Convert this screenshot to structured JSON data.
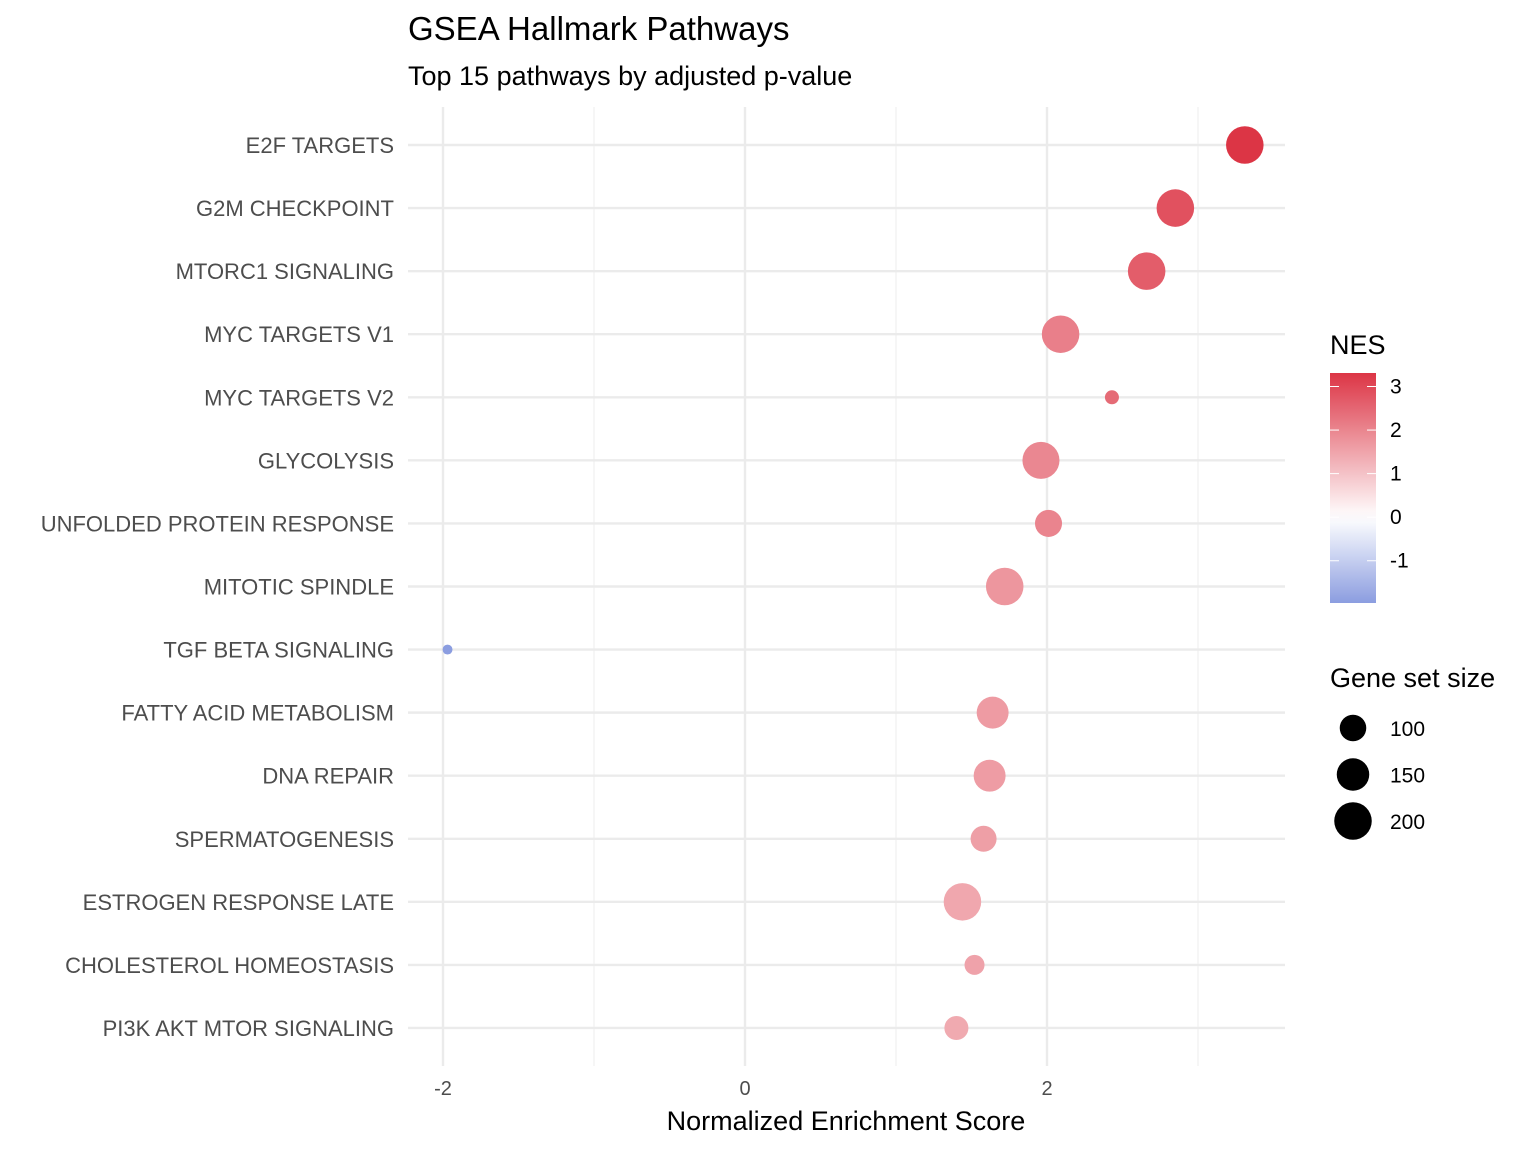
{
  "chart_data": {
    "type": "scatter",
    "title": "GSEA Hallmark Pathways",
    "subtitle": "Top 15 pathways by adjusted p-value",
    "xlabel": "Normalized Enrichment Score",
    "ylabel": "",
    "xlim": [
      -2.23,
      3.58
    ],
    "x_ticks": [
      -2,
      0,
      2
    ],
    "x_tick_labels": [
      "-2",
      "0",
      "2"
    ],
    "grid": true,
    "categories": [
      "E2F TARGETS",
      "G2M CHECKPOINT",
      "MTORC1 SIGNALING",
      "MYC TARGETS V1",
      "MYC TARGETS V2",
      "GLYCOLYSIS",
      "UNFOLDED PROTEIN RESPONSE",
      "MITOTIC SPINDLE",
      "TGF BETA SIGNALING",
      "FATTY ACID METABOLISM",
      "DNA REPAIR",
      "SPERMATOGENESIS",
      "ESTROGEN RESPONSE LATE",
      "CHOLESTEROL HOMEOSTASIS",
      "PI3K AKT MTOR SIGNALING"
    ],
    "nes": [
      3.31,
      2.85,
      2.66,
      2.09,
      2.43,
      1.96,
      2.01,
      1.72,
      -1.97,
      1.64,
      1.62,
      1.58,
      1.44,
      1.52,
      1.4
    ],
    "size": [
      200,
      200,
      200,
      200,
      28,
      195,
      104,
      200,
      14,
      145,
      145,
      96,
      200,
      57,
      82
    ],
    "color_legend": {
      "title": "NES",
      "limits": [
        -1.97,
        3.31
      ],
      "ticks": [
        3,
        2,
        1,
        0,
        -1
      ],
      "tick_labels": [
        "3",
        "2",
        "1",
        "0",
        "-1"
      ],
      "low_color": "#8b9de0",
      "mid_color": "#ffffff",
      "high_color": "#dc3545"
    },
    "size_legend": {
      "title": "Gene set size",
      "values": [
        100,
        150,
        200
      ],
      "labels": [
        "100",
        "150",
        "200"
      ]
    },
    "legend_position": "right"
  }
}
